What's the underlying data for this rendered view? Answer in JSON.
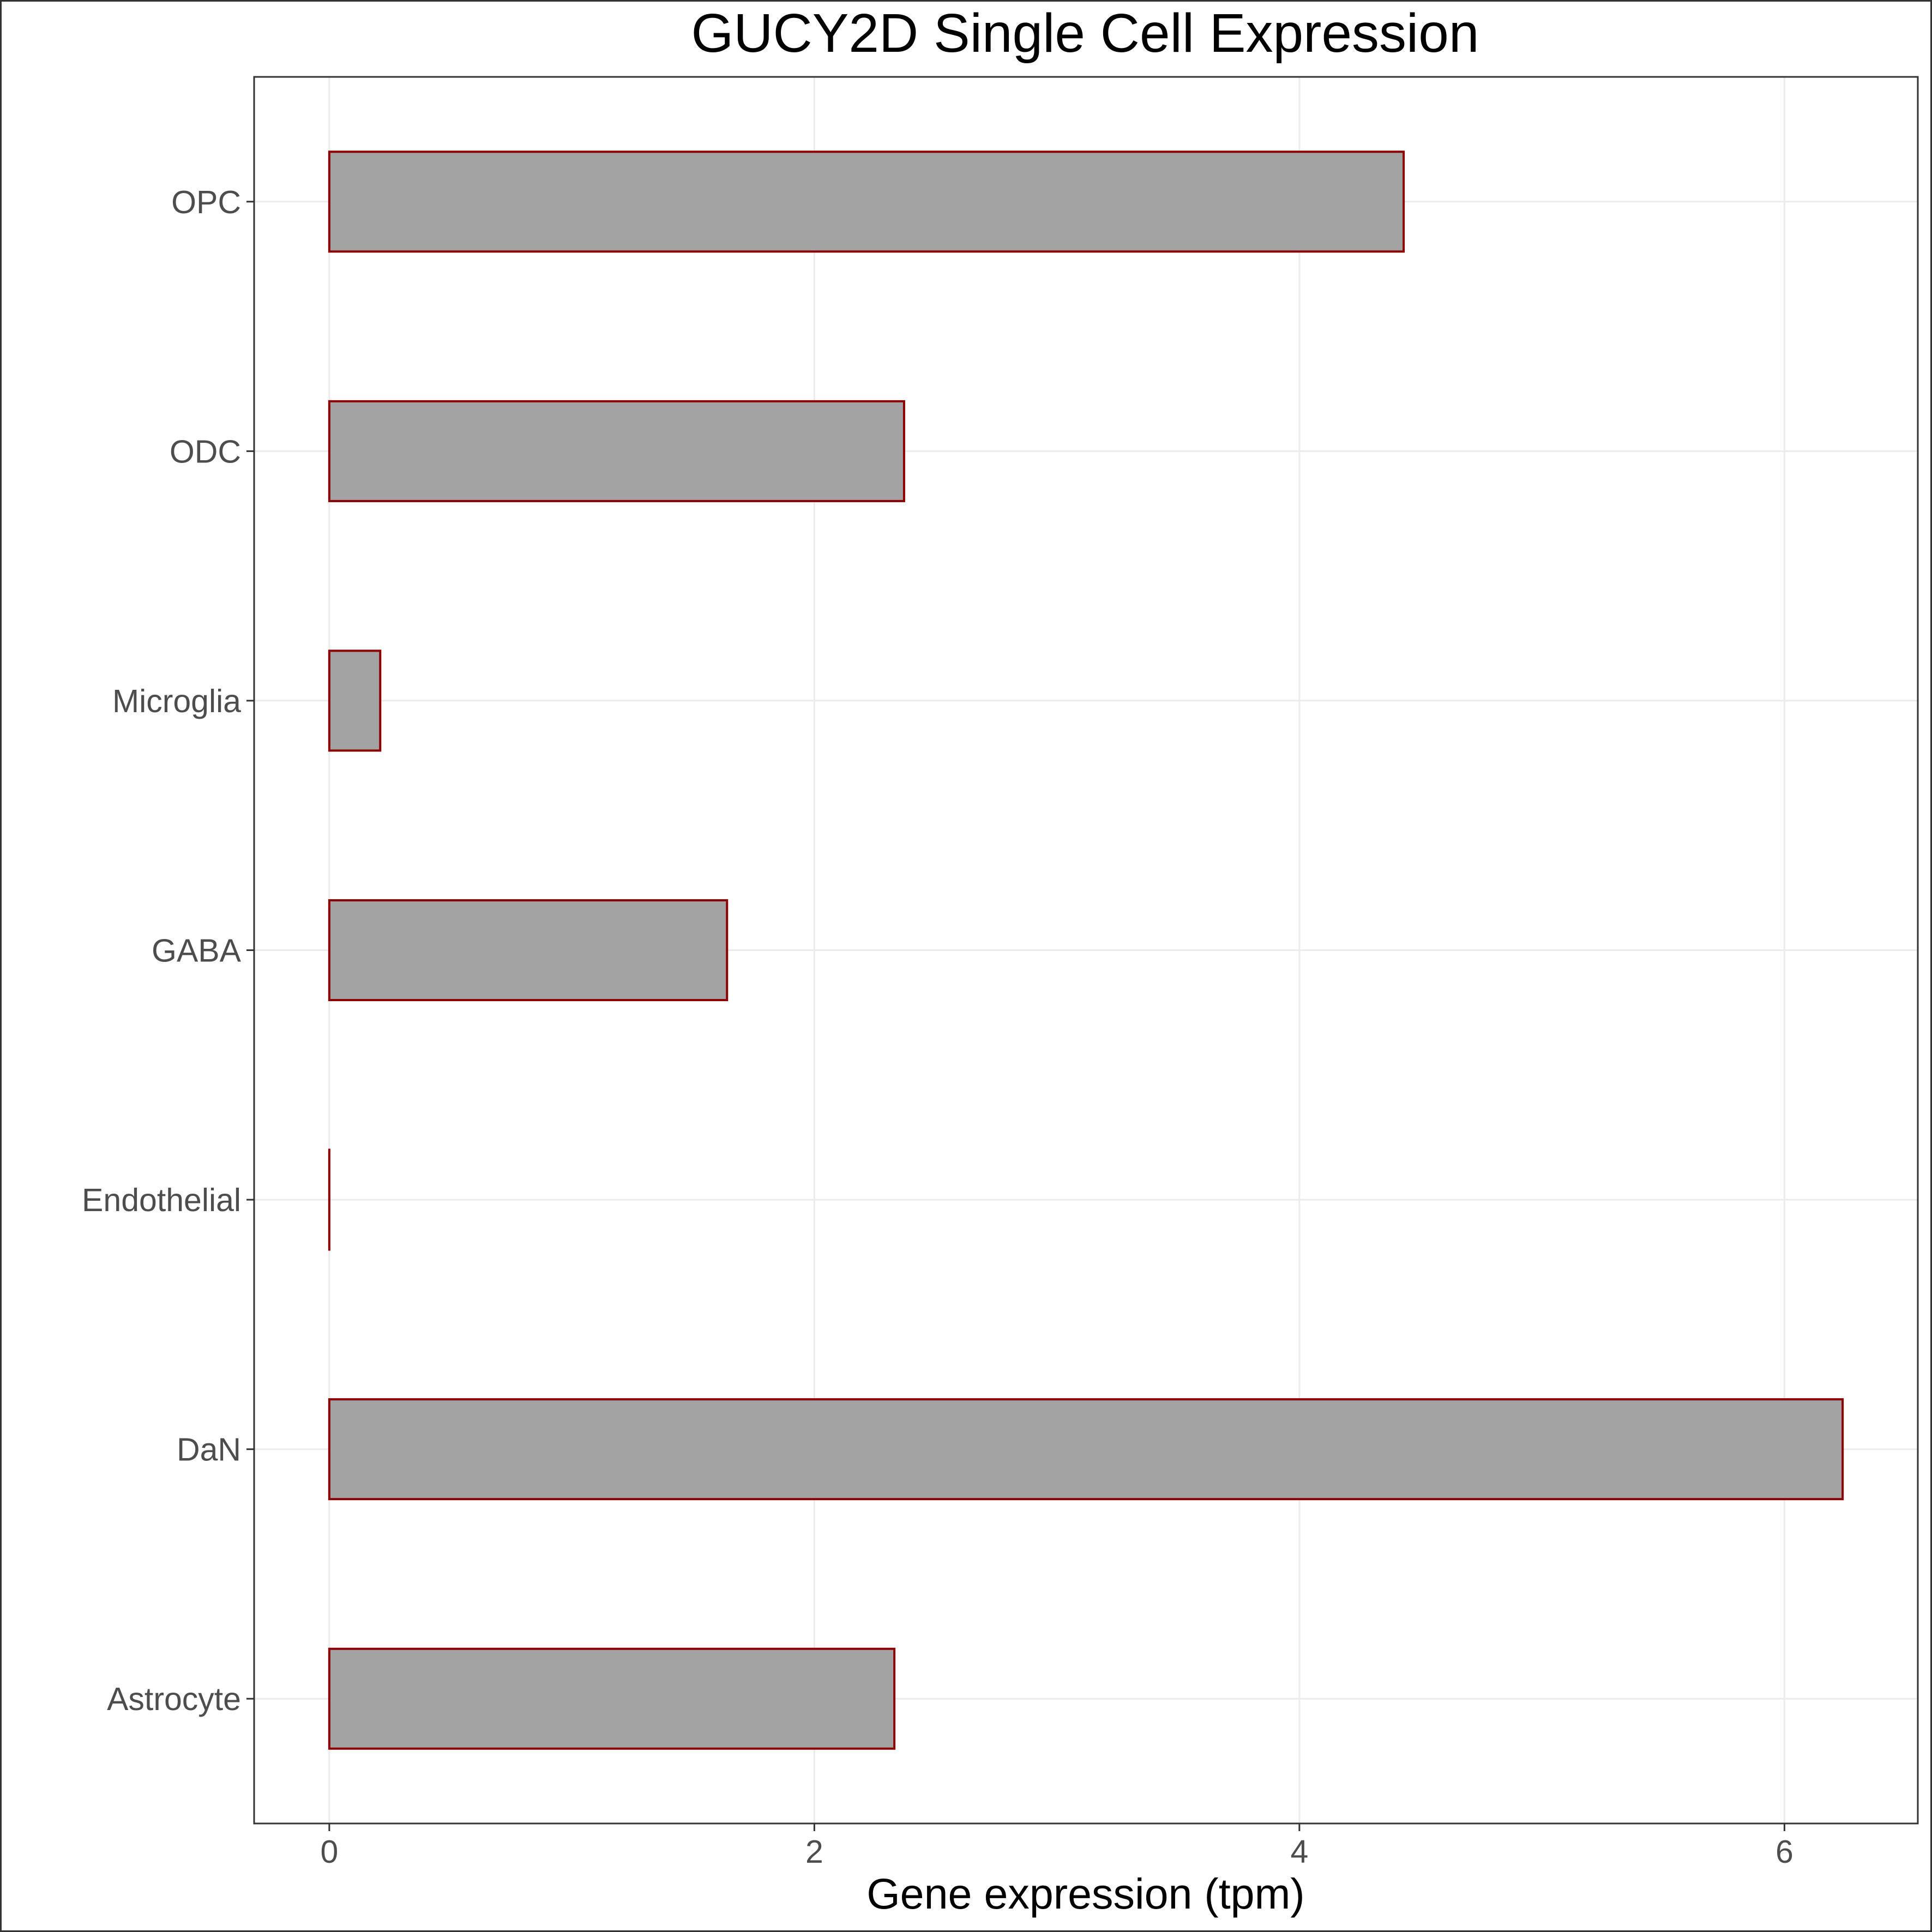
{
  "chart_data": {
    "type": "bar",
    "orientation": "horizontal",
    "title": "GUCY2D Single Cell Expression",
    "xlabel": "Gene expression (tpm)",
    "ylabel": "",
    "categories": [
      "Astrocyte",
      "DaN",
      "Endothelial",
      "GABA",
      "Microglia",
      "ODC",
      "OPC"
    ],
    "values": [
      2.33,
      6.24,
      0.0,
      1.64,
      0.21,
      2.37,
      4.43
    ],
    "xlim": [
      -0.31,
      6.55
    ],
    "xticks": [
      0,
      2,
      4,
      6
    ],
    "xtick_labels": [
      "0",
      "2",
      "4",
      "6"
    ],
    "grid": true,
    "colors": {
      "bar_fill": "#a3a3a3",
      "bar_stroke": "#8b0000",
      "grid": "#ebebeb"
    }
  }
}
